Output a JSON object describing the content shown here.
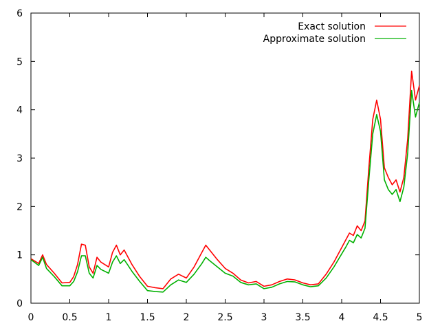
{
  "chart_data": {
    "type": "line",
    "title": "",
    "xlabel": "",
    "ylabel": "",
    "xlim": [
      0,
      5
    ],
    "ylim": [
      0,
      6
    ],
    "x_ticks": [
      0,
      0.5,
      1,
      1.5,
      2,
      2.5,
      3,
      3.5,
      4,
      4.5,
      5
    ],
    "x_tick_labels": [
      "0",
      "0.5",
      "1",
      "1.5",
      "2",
      "2.5",
      "3",
      "3.5",
      "4",
      "4.5",
      "5"
    ],
    "y_ticks": [
      0,
      1,
      2,
      3,
      4,
      5,
      6
    ],
    "y_tick_labels": [
      "0",
      "1",
      "2",
      "3",
      "4",
      "5",
      "6"
    ],
    "grid": false,
    "legend_position": "top-right",
    "x": [
      0,
      0.1,
      0.15,
      0.2,
      0.3,
      0.4,
      0.5,
      0.55,
      0.6,
      0.65,
      0.7,
      0.75,
      0.8,
      0.85,
      0.9,
      1.0,
      1.05,
      1.1,
      1.15,
      1.2,
      1.25,
      1.3,
      1.4,
      1.5,
      1.6,
      1.7,
      1.8,
      1.9,
      2.0,
      2.1,
      2.2,
      2.25,
      2.3,
      2.4,
      2.5,
      2.6,
      2.7,
      2.8,
      2.9,
      3.0,
      3.1,
      3.2,
      3.3,
      3.4,
      3.5,
      3.6,
      3.7,
      3.8,
      3.9,
      4.0,
      4.05,
      4.1,
      4.15,
      4.2,
      4.25,
      4.3,
      4.35,
      4.4,
      4.45,
      4.5,
      4.55,
      4.6,
      4.65,
      4.7,
      4.75,
      4.8,
      4.85,
      4.9,
      4.95,
      5.0
    ],
    "series": [
      {
        "name": "Exact solution",
        "color": "#ff0000",
        "values": [
          0.92,
          0.82,
          1.0,
          0.8,
          0.62,
          0.42,
          0.43,
          0.55,
          0.8,
          1.22,
          1.2,
          0.75,
          0.62,
          0.95,
          0.85,
          0.75,
          1.05,
          1.2,
          1.0,
          1.1,
          0.95,
          0.8,
          0.55,
          0.35,
          0.32,
          0.3,
          0.5,
          0.6,
          0.52,
          0.75,
          1.05,
          1.2,
          1.1,
          0.9,
          0.72,
          0.62,
          0.48,
          0.42,
          0.45,
          0.35,
          0.38,
          0.45,
          0.5,
          0.48,
          0.42,
          0.38,
          0.4,
          0.6,
          0.85,
          1.15,
          1.3,
          1.45,
          1.4,
          1.6,
          1.5,
          1.7,
          2.8,
          3.8,
          4.2,
          3.8,
          2.8,
          2.6,
          2.45,
          2.55,
          2.3,
          2.6,
          3.4,
          4.8,
          4.2,
          4.5
        ]
      },
      {
        "name": "Approximate solution",
        "color": "#00b000",
        "values": [
          0.9,
          0.78,
          0.95,
          0.72,
          0.55,
          0.36,
          0.36,
          0.45,
          0.65,
          0.98,
          0.98,
          0.62,
          0.52,
          0.78,
          0.7,
          0.62,
          0.85,
          0.98,
          0.82,
          0.9,
          0.78,
          0.66,
          0.45,
          0.26,
          0.24,
          0.23,
          0.38,
          0.48,
          0.43,
          0.6,
          0.82,
          0.95,
          0.88,
          0.75,
          0.62,
          0.56,
          0.43,
          0.38,
          0.4,
          0.3,
          0.33,
          0.4,
          0.45,
          0.44,
          0.38,
          0.34,
          0.36,
          0.52,
          0.75,
          1.02,
          1.15,
          1.3,
          1.25,
          1.42,
          1.35,
          1.55,
          2.55,
          3.5,
          3.9,
          3.55,
          2.55,
          2.35,
          2.25,
          2.35,
          2.1,
          2.4,
          3.1,
          4.4,
          3.85,
          4.15
        ]
      }
    ]
  }
}
